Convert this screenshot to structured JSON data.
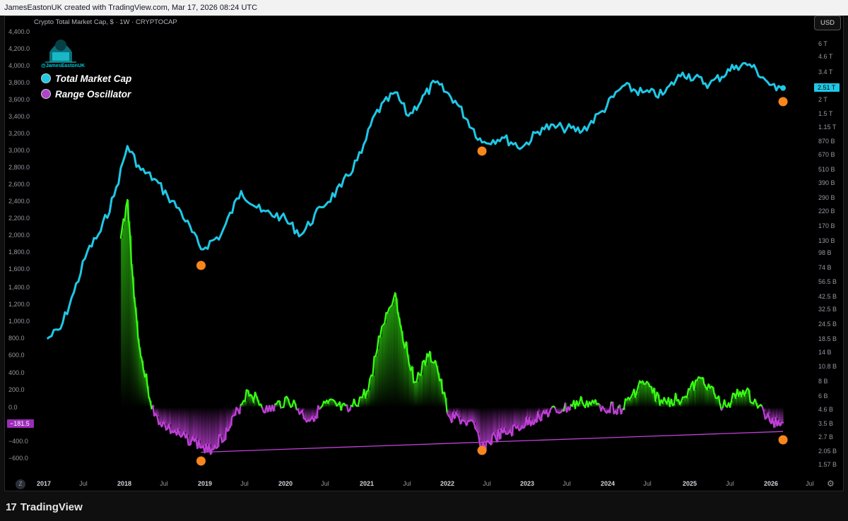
{
  "header": {
    "credit": "JamesEastonUK created with TradingView.com, Mar 17, 2026 08:24 UTC"
  },
  "chart_title": "Crypto Total Market Cap, $ · 1W · CRYPTOCAP",
  "currency_button": "USD",
  "watermark": {
    "handle": "@JamesEastonUK"
  },
  "legend": [
    {
      "label": "Total Market Cap",
      "color": "#1ec8e6"
    },
    {
      "label": "Range Oscillator",
      "color": "#b044c8"
    }
  ],
  "footer": {
    "brand": "TradingView"
  },
  "reset_button": "Z",
  "chart_data": [
    {
      "type": "line",
      "title": "Crypto Total Market Cap",
      "ylabel": "",
      "log_scale": true,
      "right_axis_ticks": [
        "6 T",
        "4.6 T",
        "3.4 T",
        "2 T",
        "1.5 T",
        "1.15 T",
        "870 B",
        "670 B",
        "510 B",
        "390 B",
        "290 B",
        "220 B",
        "170 B",
        "130 B",
        "98 B",
        "74 B",
        "56.5 B",
        "42.5 B",
        "32.5 B",
        "24.5 B",
        "18.5 B",
        "14 B",
        "10.8 B",
        "8 B",
        "6 B",
        "4.6 B",
        "3.5 B",
        "2.7 B",
        "2.05 B",
        "1.57 B"
      ],
      "last_value_label": "2.51 T",
      "series": [
        {
          "name": "Total Market Cap",
          "color": "#1ec8e6",
          "x": [
            "2017-01",
            "2017-03",
            "2017-05",
            "2017-07",
            "2017-09",
            "2017-11",
            "2018-01",
            "2018-03",
            "2018-05",
            "2018-07",
            "2018-09",
            "2018-12",
            "2019-03",
            "2019-06",
            "2019-09",
            "2019-12",
            "2020-03",
            "2020-06",
            "2020-09",
            "2020-12",
            "2021-02",
            "2021-05",
            "2021-07",
            "2021-11",
            "2022-02",
            "2022-06",
            "2022-09",
            "2022-12",
            "2023-03",
            "2023-06",
            "2023-09",
            "2023-12",
            "2024-03",
            "2024-06",
            "2024-09",
            "2024-12",
            "2025-04",
            "2025-08",
            "2025-10",
            "2025-12",
            "2026-02",
            "2026-03"
          ],
          "values": [
            18,
            22,
            45,
            100,
            150,
            300,
            800,
            500,
            420,
            300,
            220,
            105,
            140,
            330,
            220,
            200,
            140,
            240,
            360,
            700,
            1500,
            2300,
            1450,
            2800,
            1950,
            860,
            950,
            780,
            1150,
            1150,
            1080,
            1600,
            2600,
            2300,
            2200,
            3400,
            2700,
            3900,
            4000,
            3100,
            2400,
            2510
          ]
        }
      ],
      "markers": [
        "2018-12",
        "2022-06",
        "2026-03"
      ]
    },
    {
      "type": "area",
      "title": "Range Oscillator",
      "left_axis_ticks": [
        "4,400.0",
        "4,200.0",
        "4,000.0",
        "3,800.0",
        "3,600.0",
        "3,400.0",
        "3,200.0",
        "3,000.0",
        "2,800.0",
        "2,600.0",
        "2,400.0",
        "2,200.0",
        "2,000.0",
        "1,800.0",
        "1,600.0",
        "1,400.0",
        "1,200.0",
        "1,000.0",
        "800.0",
        "600.0",
        "400.0",
        "200.0",
        "0.0",
        "−400.0",
        "−600.0"
      ],
      "last_value_label": "−181.5",
      "series": [
        {
          "name": "Range Oscillator",
          "x": [
            "2017-12",
            "2018-01",
            "2018-02",
            "2018-03",
            "2018-04",
            "2018-05",
            "2018-07",
            "2018-09",
            "2018-11",
            "2019-01",
            "2019-04",
            "2019-07",
            "2019-10",
            "2020-01",
            "2020-04",
            "2020-07",
            "2020-10",
            "2021-01",
            "2021-03",
            "2021-05",
            "2021-06",
            "2021-08",
            "2021-10",
            "2021-11",
            "2022-01",
            "2022-03",
            "2022-05",
            "2022-06",
            "2022-08",
            "2022-10",
            "2022-12",
            "2023-03",
            "2023-06",
            "2023-09",
            "2023-12",
            "2024-03",
            "2024-06",
            "2024-09",
            "2024-12",
            "2025-03",
            "2025-06",
            "2025-09",
            "2025-11",
            "2026-01",
            "2026-03"
          ],
          "values": [
            2000,
            2450,
            1300,
            600,
            250,
            -100,
            -250,
            -350,
            -400,
            -520,
            -280,
            200,
            -50,
            100,
            -150,
            50,
            -50,
            200,
            950,
            1350,
            900,
            300,
            600,
            550,
            -100,
            -150,
            -250,
            -480,
            -350,
            -300,
            -220,
            -80,
            -30,
            60,
            10,
            -20,
            310,
            50,
            120,
            350,
            0,
            200,
            50,
            -160,
            -181.5
          ]
        }
      ],
      "trendline": {
        "from": "2018-12",
        "to": "2026-03"
      },
      "markers": [
        "2018-12",
        "2022-06",
        "2026-03"
      ]
    }
  ],
  "x_axis_labels": [
    "2017",
    "Jul",
    "2018",
    "Jul",
    "2019",
    "Jul",
    "2020",
    "Jul",
    "2021",
    "Jul",
    "2022",
    "Jul",
    "2023",
    "Jul",
    "2024",
    "Jul",
    "2025",
    "Jul",
    "2026",
    "Jul"
  ]
}
